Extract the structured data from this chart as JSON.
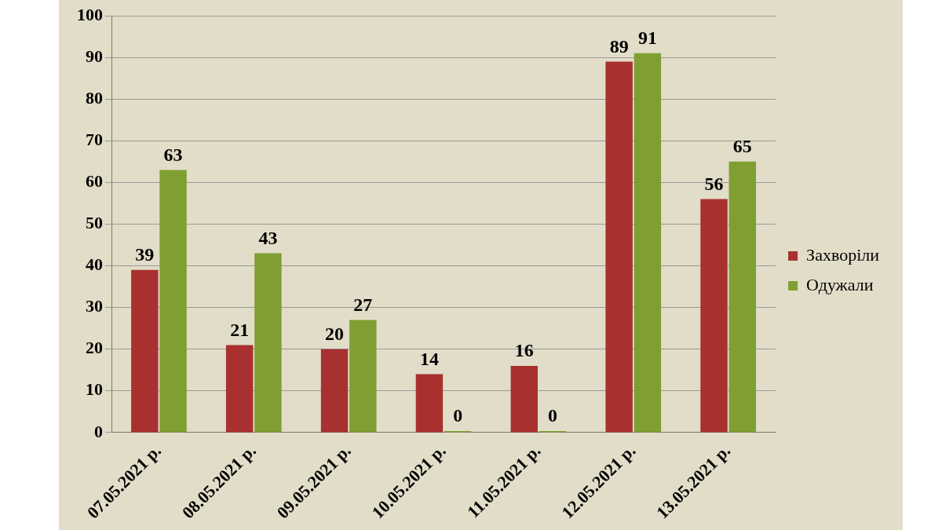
{
  "chart_data": {
    "type": "bar",
    "categories": [
      "07.05.2021 р.",
      "08.05.2021 р.",
      "09.05.2021 р.",
      "10.05.2021 р.",
      "11.05.2021 р.",
      "12.05.2021 р.",
      "13.05.2021 р."
    ],
    "series": [
      {
        "name": "Захворіли",
        "color": "#a8312f",
        "values": [
          39,
          21,
          20,
          14,
          16,
          89,
          56
        ]
      },
      {
        "name": "Одужали",
        "color": "#7f9f33",
        "values": [
          63,
          43,
          27,
          0,
          0,
          91,
          65
        ]
      }
    ],
    "ylim": [
      0,
      100
    ],
    "yticks": [
      0,
      10,
      20,
      30,
      40,
      50,
      60,
      70,
      80,
      90,
      100
    ],
    "grid": "y",
    "legend": "right",
    "data_labels": true
  }
}
